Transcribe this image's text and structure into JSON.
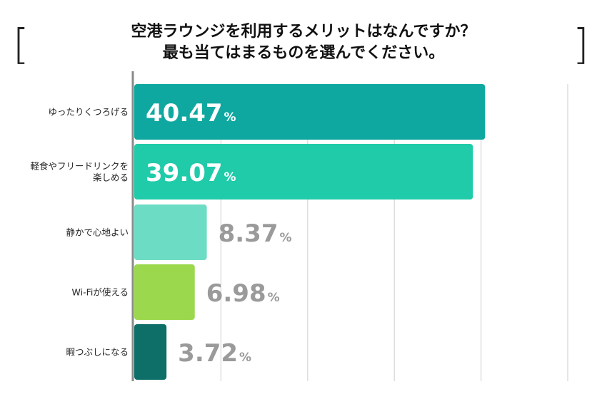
{
  "title_line1": "空港ラウンジを利用するメリットはなんですか？",
  "title_line2": "最も当てはまるものを選んでください。",
  "bracket_left": "[",
  "bracket_right": "]",
  "chart_data": {
    "type": "bar",
    "orientation": "horizontal",
    "title": "空港ラウンジを利用するメリットはなんですか？最も当てはまるものを選んでください。",
    "categories": [
      [
        "ゆったりくつろげる"
      ],
      [
        "軽食やフリードリンクを",
        "楽しめる"
      ],
      [
        "静かで心地よい"
      ],
      [
        "Wi-Fiが使える"
      ],
      [
        "暇つぶしになる"
      ]
    ],
    "values": [
      40.47,
      39.07,
      8.37,
      6.98,
      3.72
    ],
    "value_labels": [
      "40.47",
      "39.07",
      "8.37",
      "6.98",
      "3.72"
    ],
    "unit": "%",
    "bar_colors": [
      "#0fa8a0",
      "#20cba9",
      "#6ddcc4",
      "#9bd84e",
      "#0e6e68"
    ],
    "inside_label_color": "#ffffff",
    "outside_label_color": "#9a9a9a",
    "grid": true,
    "xlim": [
      0,
      50
    ],
    "xlabel": "",
    "ylabel": ""
  }
}
